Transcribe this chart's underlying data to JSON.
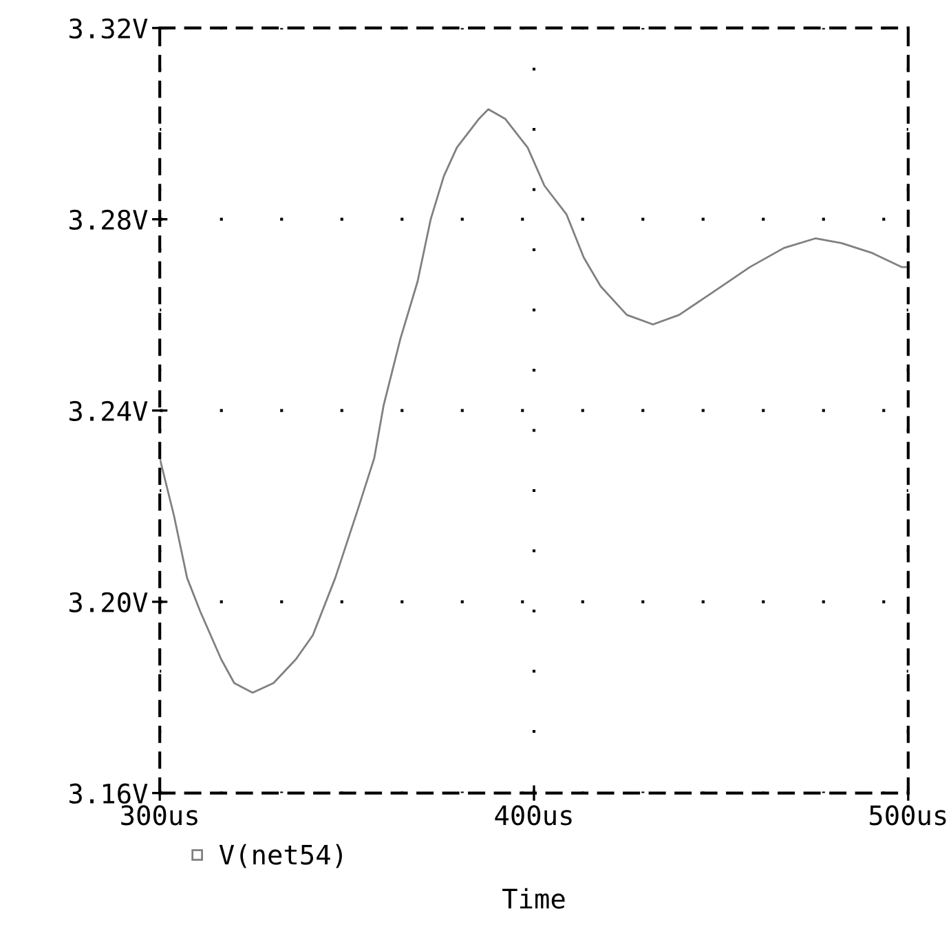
{
  "chart_data": {
    "type": "line",
    "xlabel": "Time",
    "xlim": [
      300,
      500
    ],
    "ylim": [
      3.16,
      3.32
    ],
    "xticks": [
      {
        "value": 300,
        "label": "300us"
      },
      {
        "value": 400,
        "label": "400us"
      },
      {
        "value": 500,
        "label": "500us"
      }
    ],
    "yticks": [
      {
        "value": 3.16,
        "label": "3.16V"
      },
      {
        "value": 3.2,
        "label": "3.20V"
      },
      {
        "value": 3.24,
        "label": "3.24V"
      },
      {
        "value": 3.28,
        "label": "3.28V"
      },
      {
        "value": 3.32,
        "label": "3.32V"
      }
    ],
    "grid": true,
    "legend": "bottom left",
    "marker": "none",
    "line_style": "solid",
    "series": [
      {
        "name": "V(net54)",
        "color": "#808080",
        "x": [
          300,
          303.8,
          307.3,
          310.8,
          316.4,
          319.9,
          324.8,
          330.4,
          336.4,
          340.9,
          346.9,
          352.8,
          357.3,
          359.8,
          364.3,
          368.9,
          372.4,
          375.9,
          379.4,
          385.3,
          387.8,
          392.3,
          398.3,
          402.8,
          408.7,
          413.3,
          417.8,
          424.8,
          431.8,
          438.8,
          448.3,
          457.7,
          466.8,
          475.2,
          482.2,
          490.2,
          498.3,
          500
        ],
        "values": [
          3.23,
          3.218,
          3.205,
          3.198,
          3.188,
          3.183,
          3.181,
          3.183,
          3.188,
          3.193,
          3.205,
          3.219,
          3.23,
          3.241,
          3.255,
          3.267,
          3.28,
          3.289,
          3.295,
          3.301,
          3.303,
          3.301,
          3.295,
          3.287,
          3.281,
          3.272,
          3.266,
          3.26,
          3.258,
          3.26,
          3.265,
          3.27,
          3.274,
          3.276,
          3.275,
          3.273,
          3.27,
          3.27
        ]
      }
    ]
  }
}
